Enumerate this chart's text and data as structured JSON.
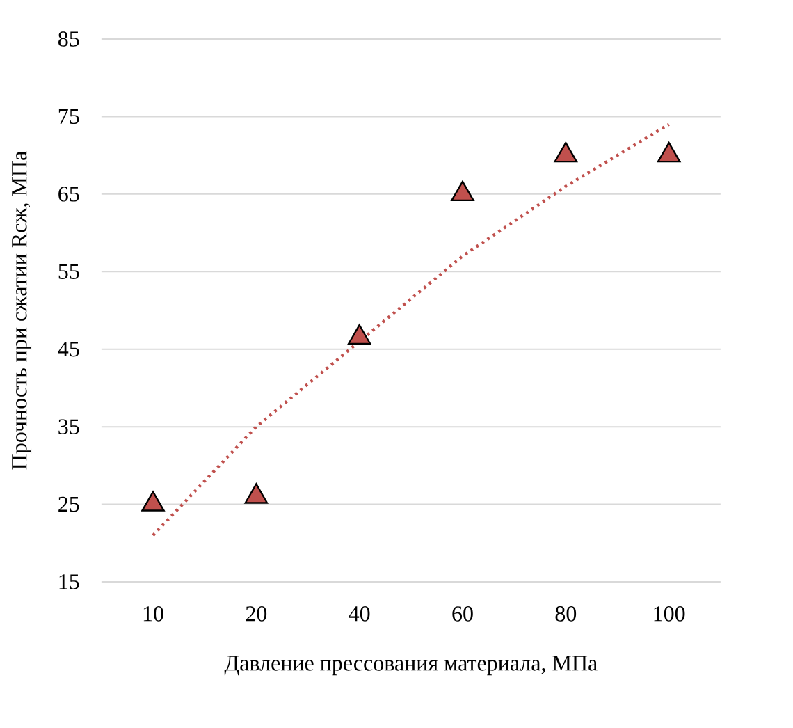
{
  "chart_data": {
    "type": "scatter",
    "xlabel": "Давление прессования материала, МПа",
    "ylabel": "Прочность при сжатии Rсж, МПа",
    "categories": [
      "10",
      "20",
      "40",
      "60",
      "80",
      "100"
    ],
    "ylim": [
      15,
      85
    ],
    "yticks": [
      15,
      25,
      35,
      45,
      55,
      65,
      75,
      85
    ],
    "grid": "y",
    "series": [
      {
        "color": "#c0504d",
        "marker": "triangle",
        "values": [
          25,
          26,
          46.5,
          65,
          70,
          70
        ]
      },
      {
        "type": "line",
        "color": "#c0504d",
        "marker": "none",
        "line_style": "dotted",
        "values": [
          21,
          35,
          46,
          57,
          66,
          74
        ]
      }
    ]
  }
}
